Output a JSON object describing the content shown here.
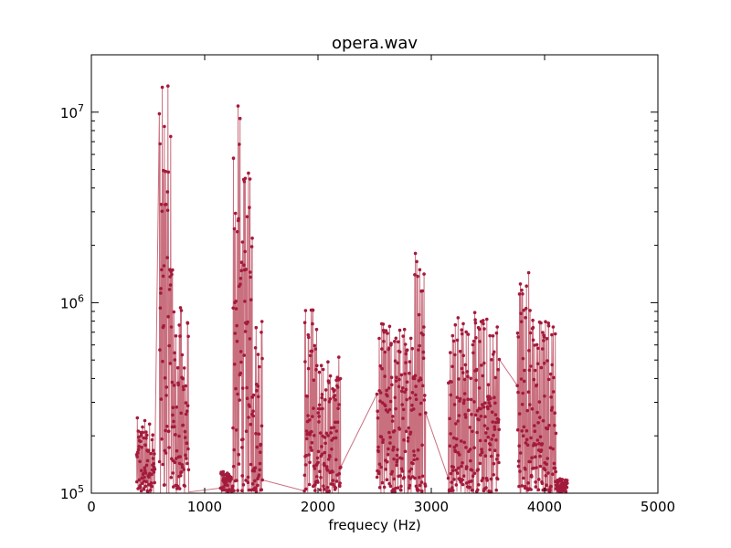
{
  "chart_data": {
    "type": "line",
    "title": "opera.wav",
    "xlabel": "frequecy (Hz)",
    "ylabel": "",
    "xlim": [
      0,
      5000
    ],
    "ylim": [
      100000,
      20000000
    ],
    "yscale": "log",
    "grid": false,
    "line_color": "#c9707f",
    "marker_color": "#a31b3c",
    "x_ticks": [
      {
        "value": 0,
        "label": "0"
      },
      {
        "value": 1000,
        "label": "1000"
      },
      {
        "value": 2000,
        "label": "2000"
      },
      {
        "value": 3000,
        "label": "3000"
      },
      {
        "value": 4000,
        "label": "4000"
      },
      {
        "value": 5000,
        "label": "5000"
      }
    ],
    "y_ticks": [
      {
        "value": 100000,
        "base": "10",
        "exp": "5"
      },
      {
        "value": 1000000,
        "base": "10",
        "exp": "6"
      },
      {
        "value": 10000000,
        "base": "10",
        "exp": "7"
      }
    ],
    "peak_bands": [
      {
        "x": [
          400,
          560
        ],
        "peak": 250000
      },
      {
        "x": [
          600,
          720
        ],
        "peak": 14000000
      },
      {
        "x": [
          720,
          860
        ],
        "peak": 1000000
      },
      {
        "x": [
          1140,
          1250
        ],
        "peak": 130000
      },
      {
        "x": [
          1250,
          1330
        ],
        "peak": 11500000
      },
      {
        "x": [
          1330,
          1420
        ],
        "peak": 5000000
      },
      {
        "x": [
          1420,
          1510
        ],
        "peak": 1000000
      },
      {
        "x": [
          1880,
          1990
        ],
        "peak": 1050000
      },
      {
        "x": [
          1990,
          2200
        ],
        "peak": 520000
      },
      {
        "x": [
          2520,
          2810
        ],
        "peak": 800000
      },
      {
        "x": [
          2810,
          2950
        ],
        "peak": 2500000
      },
      {
        "x": [
          3150,
          3600
        ],
        "peak": 900000
      },
      {
        "x": [
          3760,
          3880
        ],
        "peak": 1700000
      },
      {
        "x": [
          3880,
          4100
        ],
        "peak": 900000
      },
      {
        "x": [
          4100,
          4200
        ],
        "peak": 120000
      }
    ]
  }
}
